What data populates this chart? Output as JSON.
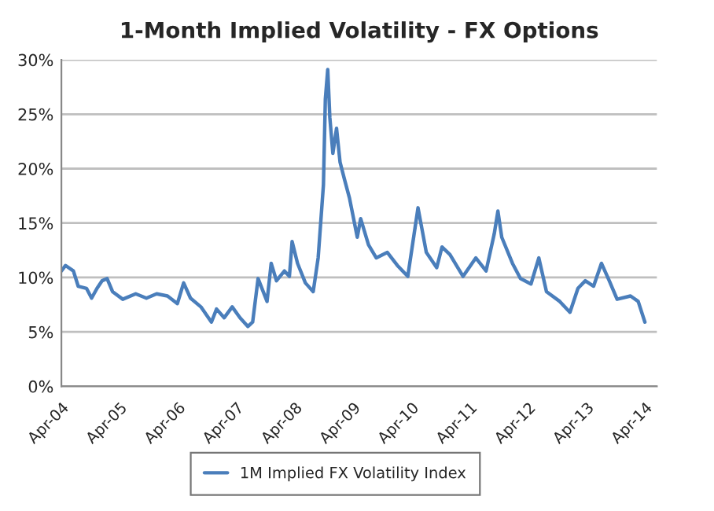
{
  "chart_data": {
    "type": "line",
    "title": "1-Month Implied Volatility - FX Options",
    "x": [
      "2004-04-01",
      "2004-04-27",
      "2004-06-15",
      "2004-07-15",
      "2004-09-05",
      "2004-10-07",
      "2004-11-10",
      "2004-12-12",
      "2005-01-12",
      "2005-02-15",
      "2005-04-20",
      "2005-07-10",
      "2005-09-15",
      "2005-11-18",
      "2006-01-25",
      "2006-03-28",
      "2006-05-06",
      "2006-06-18",
      "2006-08-22",
      "2006-10-27",
      "2006-11-28",
      "2007-01-15",
      "2007-03-06",
      "2007-04-24",
      "2007-06-12",
      "2007-07-12",
      "2007-08-15",
      "2007-10-10",
      "2007-11-05",
      "2007-12-08",
      "2008-01-27",
      "2008-02-27",
      "2008-03-15",
      "2008-04-18",
      "2008-06-06",
      "2008-07-25",
      "2008-08-25",
      "2008-09-27",
      "2008-10-09",
      "2008-10-24",
      "2008-11-06",
      "2008-11-25",
      "2008-12-18",
      "2009-01-09",
      "2009-02-06",
      "2009-03-09",
      "2009-04-27",
      "2009-05-18",
      "2009-07-06",
      "2009-08-24",
      "2009-11-01",
      "2010-01-03",
      "2010-03-09",
      "2010-05-12",
      "2010-07-03",
      "2010-09-06",
      "2010-10-09",
      "2010-11-28",
      "2011-02-18",
      "2011-05-09",
      "2011-07-12",
      "2011-09-01",
      "2011-09-24",
      "2011-10-18",
      "2011-12-24",
      "2012-02-12",
      "2012-04-18",
      "2012-06-06",
      "2012-07-24",
      "2012-10-15",
      "2012-12-18",
      "2013-02-06",
      "2013-03-24",
      "2013-05-15",
      "2013-07-03",
      "2013-08-21",
      "2013-10-09",
      "2014-01-01",
      "2014-02-18",
      "2014-04-01"
    ],
    "series": [
      {
        "name": "1M Implied FX Volatility Index",
        "color": "#4a7ebb",
        "values": [
          10.6,
          11.1,
          10.6,
          9.2,
          9.0,
          8.1,
          9.0,
          9.7,
          9.9,
          8.7,
          8.0,
          8.5,
          8.1,
          8.5,
          8.3,
          7.6,
          9.5,
          8.1,
          7.3,
          5.9,
          7.1,
          6.3,
          7.3,
          6.3,
          5.5,
          5.9,
          9.9,
          7.8,
          11.3,
          9.7,
          10.6,
          10.1,
          13.3,
          11.3,
          9.5,
          8.7,
          11.8,
          18.5,
          26.4,
          29.1,
          24.7,
          21.4,
          23.7,
          20.6,
          19.0,
          17.3,
          13.7,
          15.4,
          13.0,
          11.8,
          12.3,
          11.1,
          10.1,
          16.4,
          12.3,
          10.9,
          12.8,
          12.1,
          10.1,
          11.8,
          10.6,
          14.0,
          16.1,
          13.7,
          11.3,
          9.9,
          9.4,
          11.8,
          8.7,
          7.8,
          6.8,
          9.0,
          9.7,
          9.2,
          11.3,
          9.7,
          8.0,
          8.3,
          7.8,
          5.9
        ]
      }
    ],
    "xlim": [
      "2004-04-01",
      "2014-06-15"
    ],
    "xticks": [
      {
        "value": "2004-04-01",
        "label": "Apr-04"
      },
      {
        "value": "2005-04-01",
        "label": "Apr-05"
      },
      {
        "value": "2006-04-01",
        "label": "Apr-06"
      },
      {
        "value": "2007-04-01",
        "label": "Apr-07"
      },
      {
        "value": "2008-04-01",
        "label": "Apr-08"
      },
      {
        "value": "2009-04-01",
        "label": "Apr-09"
      },
      {
        "value": "2010-04-01",
        "label": "Apr-10"
      },
      {
        "value": "2011-04-01",
        "label": "Apr-11"
      },
      {
        "value": "2012-04-01",
        "label": "Apr-12"
      },
      {
        "value": "2013-04-01",
        "label": "Apr-13"
      },
      {
        "value": "2014-04-01",
        "label": "Apr-14"
      }
    ],
    "ylim": [
      0,
      30
    ],
    "yticks": [
      {
        "value": 0,
        "label": "0%"
      },
      {
        "value": 5,
        "label": "5%"
      },
      {
        "value": 10,
        "label": "10%"
      },
      {
        "value": 15,
        "label": "15%"
      },
      {
        "value": 20,
        "label": "20%"
      },
      {
        "value": 25,
        "label": "25%"
      },
      {
        "value": 30,
        "label": "30%"
      }
    ],
    "grid": "y",
    "legend": "bottom",
    "marker": "none",
    "line_style": "solid"
  }
}
